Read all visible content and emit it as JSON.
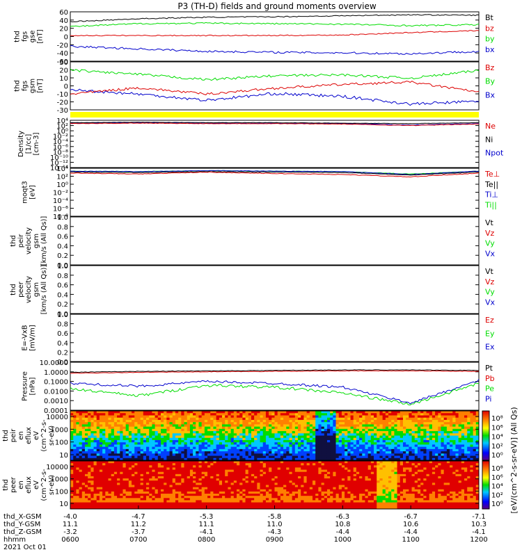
{
  "title": "P3 (TH-D) fields and ground moments overview",
  "colors": {
    "black": "#000000",
    "red": "#dd0000",
    "green": "#00dd00",
    "blue": "#0000cc",
    "yellow": "#ffff00"
  },
  "time_axis": {
    "row_labels": [
      "thd_X-GSM",
      "thd_Y-GSM",
      "thd_Z-GSM",
      "hhmm",
      "2021 Oct 01"
    ],
    "ticks": [
      {
        "x": "-4.0",
        "y": "11.1",
        "z": "-3.2",
        "t": "0600"
      },
      {
        "x": "-4.7",
        "y": "11.2",
        "z": "-3.7",
        "t": "0700"
      },
      {
        "x": "-5.3",
        "y": "11.1",
        "z": "-4.1",
        "t": "0800"
      },
      {
        "x": "-5.8",
        "y": "11.0",
        "z": "-4.3",
        "t": "0900"
      },
      {
        "x": "-6.3",
        "y": "10.8",
        "z": "-4.4",
        "t": "1000"
      },
      {
        "x": "-6.7",
        "y": "10.6",
        "z": "-4.4",
        "t": "1100"
      },
      {
        "x": "-7.1",
        "y": "10.3",
        "z": "-4.1",
        "t": "1200"
      }
    ]
  },
  "panels": [
    {
      "id": "fgs_gse",
      "ylabel": [
        "thd",
        "fgs",
        "gse",
        "[nT]"
      ],
      "ticks": [
        "60",
        "40",
        "20",
        "0",
        "-20",
        "-40",
        "-60"
      ],
      "legend": [
        {
          "label": "Bt",
          "color": "black"
        },
        {
          "label": "bz",
          "color": "red"
        },
        {
          "label": "by",
          "color": "green"
        },
        {
          "label": "bx",
          "color": "blue"
        }
      ]
    },
    {
      "id": "fgs_gsm",
      "ylabel": [
        "thd",
        "fgs",
        "gsm",
        "[nT]"
      ],
      "ticks": [
        "30",
        "20",
        "10",
        "0",
        "-10",
        "-20",
        "-30"
      ],
      "legend": [
        {
          "label": "Bz",
          "color": "red"
        },
        {
          "label": "By",
          "color": "green"
        },
        {
          "label": "Bx",
          "color": "blue"
        }
      ]
    },
    {
      "id": "density",
      "ylabel": [
        "Density",
        "[1/cc]",
        "[cm-3]"
      ],
      "ticks": [
        "10⁴",
        "10²",
        "10⁰",
        "10⁻²",
        "10⁻⁴",
        "10⁻⁶",
        "10⁻⁸",
        "10⁻¹⁰",
        "10⁻¹²",
        "10⁻¹⁴"
      ],
      "legend": [
        {
          "label": "Ne",
          "color": "red"
        },
        {
          "label": "Ni",
          "color": "black"
        },
        {
          "label": "Npot",
          "color": "blue"
        }
      ]
    },
    {
      "id": "temperature",
      "ylabel": [
        "moqt3",
        "[eV]"
      ],
      "ticks": [
        "10⁴",
        "10²",
        "10⁰",
        "10⁻²",
        "10⁻⁴",
        "10⁻⁶",
        "10⁻⁸"
      ],
      "legend": [
        {
          "label": "Te⊥",
          "color": "red"
        },
        {
          "label": "Te||",
          "color": "black"
        },
        {
          "label": "Ti⊥",
          "color": "blue"
        },
        {
          "label": "Ti||",
          "color": "green"
        }
      ]
    },
    {
      "id": "peir_velocity",
      "ylabel": [
        "thd",
        "peir",
        "velocity",
        "gsm",
        "[km/s (All Qs)]"
      ],
      "ticks": [
        "1.0",
        "0.8",
        "0.6",
        "0.4",
        "0.2",
        "0.0"
      ],
      "legend": [
        {
          "label": "Vt",
          "color": "black"
        },
        {
          "label": "Vz",
          "color": "red"
        },
        {
          "label": "Vy",
          "color": "green"
        },
        {
          "label": "Vx",
          "color": "blue"
        }
      ]
    },
    {
      "id": "peer_velocity",
      "ylabel": [
        "thd",
        "peer",
        "velocity",
        "gsm",
        "[km/s (All Qs)]"
      ],
      "ticks": [
        "1.0",
        "0.8",
        "0.6",
        "0.4",
        "0.2",
        "0.0"
      ],
      "legend": [
        {
          "label": "Vt",
          "color": "black"
        },
        {
          "label": "Vz",
          "color": "red"
        },
        {
          "label": "Vy",
          "color": "green"
        },
        {
          "label": "Vx",
          "color": "blue"
        }
      ]
    },
    {
      "id": "efield",
      "ylabel": [
        "E=-VxB",
        "[mV/m]"
      ],
      "ticks": [
        "1.0",
        "0.8",
        "0.6",
        "0.4",
        "0.2",
        "0.0"
      ],
      "legend": [
        {
          "label": "Ez",
          "color": "red"
        },
        {
          "label": "Ey",
          "color": "green"
        },
        {
          "label": "Ex",
          "color": "blue"
        }
      ]
    },
    {
      "id": "pressure",
      "ylabel": [
        "Pressure",
        "[nPa]"
      ],
      "ticks": [
        "10.0000",
        "1.0000",
        "0.1000",
        "0.0100",
        "0.0010",
        "0.0001"
      ],
      "legend": [
        {
          "label": "Pt",
          "color": "black"
        },
        {
          "label": "Pb",
          "color": "red"
        },
        {
          "label": "Pe",
          "color": "green"
        },
        {
          "label": "Pi",
          "color": "blue"
        }
      ]
    },
    {
      "id": "peir_spec",
      "ylabel": [
        "thd",
        "peir",
        "en",
        "eflux",
        "eV",
        "(cm^2-s-",
        "sr-eV)"
      ],
      "ticks": [
        "10000",
        "1000",
        "100",
        "10"
      ]
    },
    {
      "id": "peer_spec",
      "ylabel": [
        "thd",
        "peer",
        "en",
        "eflux",
        "eV",
        "(cm^2-s-",
        "sr-eV)"
      ],
      "ticks": [
        "10000",
        "1000",
        "100",
        "10"
      ]
    }
  ],
  "colorbar": {
    "label": "[eV/(cm^2-s-sr-eV)] (All Qs)",
    "ticks_top": [
      "10⁸",
      "10⁶",
      "10⁴",
      "10²",
      "10⁰"
    ],
    "ticks_bottom": [
      "10⁸",
      "10⁶",
      "10⁴",
      "10²",
      "10⁰"
    ]
  },
  "chart_data": [
    {
      "type": "line",
      "title": "P3 (TH-D) fields and ground moments overview",
      "ylabel": "thd fgs gse [nT]",
      "ylim": [
        -60,
        60
      ],
      "x": [
        "0600",
        "0700",
        "0800",
        "0900",
        "1000",
        "1100",
        "1200"
      ],
      "series": [
        {
          "name": "Bt",
          "color": "black",
          "values": [
            35,
            45,
            48,
            50,
            52,
            55,
            52
          ]
        },
        {
          "name": "bz",
          "color": "red",
          "values": [
            2,
            2,
            2,
            2,
            3,
            10,
            15
          ]
        },
        {
          "name": "by",
          "color": "green",
          "values": [
            25,
            32,
            33,
            32,
            30,
            25,
            28
          ]
        },
        {
          "name": "bx",
          "color": "blue",
          "values": [
            -22,
            -30,
            -38,
            -40,
            -42,
            -45,
            -38
          ]
        }
      ]
    },
    {
      "type": "line",
      "ylabel": "thd fgs gsm [nT]",
      "ylim": [
        -30,
        30
      ],
      "x": [
        "0600",
        "0700",
        "0800",
        "0900",
        "1000",
        "1100",
        "1200"
      ],
      "series": [
        {
          "name": "Bz",
          "color": "red",
          "values": [
            -10,
            -2,
            -10,
            -3,
            2,
            5,
            -8
          ]
        },
        {
          "name": "By",
          "color": "green",
          "values": [
            20,
            15,
            8,
            13,
            14,
            10,
            18
          ]
        },
        {
          "name": "Bx",
          "color": "blue",
          "values": [
            -5,
            -10,
            -18,
            -10,
            -15,
            -25,
            -22
          ]
        }
      ]
    },
    {
      "type": "line",
      "ylabel": "Density [1/cc] [cm-3]",
      "log": true,
      "ylim": [
        1e-14,
        10000.0
      ],
      "x": [
        "0600",
        "0700",
        "0800",
        "0900",
        "1000",
        "1100",
        "1200"
      ],
      "series": [
        {
          "name": "Ne",
          "color": "red",
          "values": [
            3,
            3.5,
            3,
            3,
            2,
            1,
            2
          ]
        },
        {
          "name": "Ni",
          "color": "black",
          "values": [
            4,
            4.5,
            4,
            4,
            3,
            2,
            3
          ]
        },
        {
          "name": "Npot",
          "color": "blue",
          "values": [
            3,
            3.5,
            3,
            3,
            2,
            1.5,
            2
          ]
        }
      ]
    },
    {
      "type": "line",
      "ylabel": "moqt3 [eV]",
      "log": true,
      "ylim": [
        1e-08,
        10000.0
      ],
      "x": [
        "0600",
        "0700",
        "0800",
        "0900",
        "1000",
        "1100",
        "1200"
      ],
      "series": [
        {
          "name": "Te⊥",
          "color": "red",
          "values": [
            1000,
            800,
            1500,
            900,
            600,
            300,
            1200
          ]
        },
        {
          "name": "Te||",
          "color": "black",
          "values": [
            1500,
            1400,
            2000,
            1500,
            1300,
            900,
            1700
          ]
        },
        {
          "name": "Ti⊥",
          "color": "blue",
          "values": [
            3000,
            2500,
            3500,
            3000,
            2500,
            1000,
            3000
          ]
        },
        {
          "name": "Ti||",
          "color": "green",
          "values": [
            3000,
            2500,
            3500,
            3000,
            2500,
            1200,
            3000
          ]
        }
      ]
    },
    {
      "type": "line",
      "ylabel": "thd peir velocity gsm [km/s (All Qs)]",
      "ylim": [
        0,
        1
      ],
      "series": [
        {
          "name": "Vt",
          "values": []
        },
        {
          "name": "Vz",
          "values": []
        },
        {
          "name": "Vy",
          "values": []
        },
        {
          "name": "Vx",
          "values": []
        }
      ]
    },
    {
      "type": "line",
      "ylabel": "thd peer velocity gsm [km/s (All Qs)]",
      "ylim": [
        0,
        1
      ],
      "series": [
        {
          "name": "Vt",
          "values": []
        },
        {
          "name": "Vz",
          "values": []
        },
        {
          "name": "Vy",
          "values": []
        },
        {
          "name": "Vx",
          "values": []
        }
      ]
    },
    {
      "type": "line",
      "ylabel": "E=-VxB [mV/m]",
      "ylim": [
        0,
        1
      ],
      "series": [
        {
          "name": "Ez",
          "values": []
        },
        {
          "name": "Ey",
          "values": []
        },
        {
          "name": "Ex",
          "values": []
        }
      ]
    },
    {
      "type": "line",
      "ylabel": "Pressure [nPa]",
      "log": true,
      "ylim": [
        0.0001,
        10
      ],
      "x": [
        "0600",
        "0700",
        "0800",
        "0900",
        "1000",
        "1100",
        "1200"
      ],
      "series": [
        {
          "name": "Pt",
          "color": "black",
          "values": [
            0.8,
            1.0,
            1.1,
            1.2,
            1.3,
            1.4,
            1.3
          ]
        },
        {
          "name": "Pb",
          "color": "red",
          "values": [
            0.7,
            0.9,
            1.0,
            1.1,
            1.2,
            1.3,
            1.2
          ]
        },
        {
          "name": "Pe",
          "color": "green",
          "values": [
            0.01,
            0.003,
            0.03,
            0.02,
            0.005,
            0.0005,
            0.05
          ]
        },
        {
          "name": "Pi",
          "color": "blue",
          "values": [
            0.05,
            0.02,
            0.08,
            0.05,
            0.02,
            0.001,
            0.1
          ]
        }
      ]
    },
    {
      "type": "heatmap",
      "ylabel": "thd peir en eflux eV (cm^2-s-sr-eV)",
      "log": true,
      "ylim": [
        7,
        25000
      ]
    },
    {
      "type": "heatmap",
      "ylabel": "thd peer en eflux eV (cm^2-s-sr-eV)",
      "log": true,
      "ylim": [
        7,
        25000
      ]
    }
  ]
}
